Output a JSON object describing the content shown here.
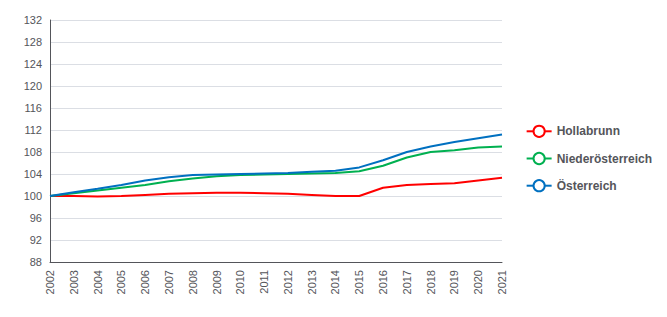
{
  "chart_data": {
    "type": "line",
    "x": [
      2002,
      2003,
      2004,
      2005,
      2006,
      2007,
      2008,
      2009,
      2010,
      2011,
      2012,
      2013,
      2014,
      2015,
      2016,
      2017,
      2018,
      2019,
      2020,
      2021
    ],
    "series": [
      {
        "name": "Hollabrunn",
        "color": "#ff0000",
        "values": [
          100.0,
          100.0,
          99.9,
          100.0,
          100.2,
          100.4,
          100.5,
          100.6,
          100.6,
          100.5,
          100.4,
          100.2,
          100.0,
          100.0,
          101.5,
          102.0,
          102.2,
          102.3,
          102.8,
          103.3
        ]
      },
      {
        "name": "Niederösterreich",
        "color": "#00b050",
        "values": [
          100.0,
          100.5,
          101.0,
          101.5,
          102.0,
          102.7,
          103.2,
          103.6,
          103.8,
          103.9,
          104.0,
          104.1,
          104.2,
          104.5,
          105.5,
          107.0,
          108.0,
          108.3,
          108.8,
          109.0
        ]
      },
      {
        "name": "Österreich",
        "color": "#0070c0",
        "values": [
          100.0,
          100.7,
          101.3,
          102.0,
          102.8,
          103.4,
          103.8,
          103.9,
          104.0,
          104.1,
          104.2,
          104.4,
          104.6,
          105.2,
          106.5,
          108.0,
          109.0,
          109.8,
          110.5,
          111.2
        ]
      }
    ],
    "xlim": [
      2002,
      2021
    ],
    "xticks": [
      2002,
      2003,
      2004,
      2005,
      2006,
      2007,
      2008,
      2009,
      2010,
      2011,
      2012,
      2013,
      2014,
      2015,
      2016,
      2017,
      2018,
      2019,
      2020,
      2021
    ],
    "ylim": [
      88,
      132
    ],
    "yticks": [
      88,
      92,
      96,
      100,
      104,
      108,
      112,
      116,
      120,
      124,
      128,
      132
    ],
    "grid": true,
    "legend": "right"
  }
}
